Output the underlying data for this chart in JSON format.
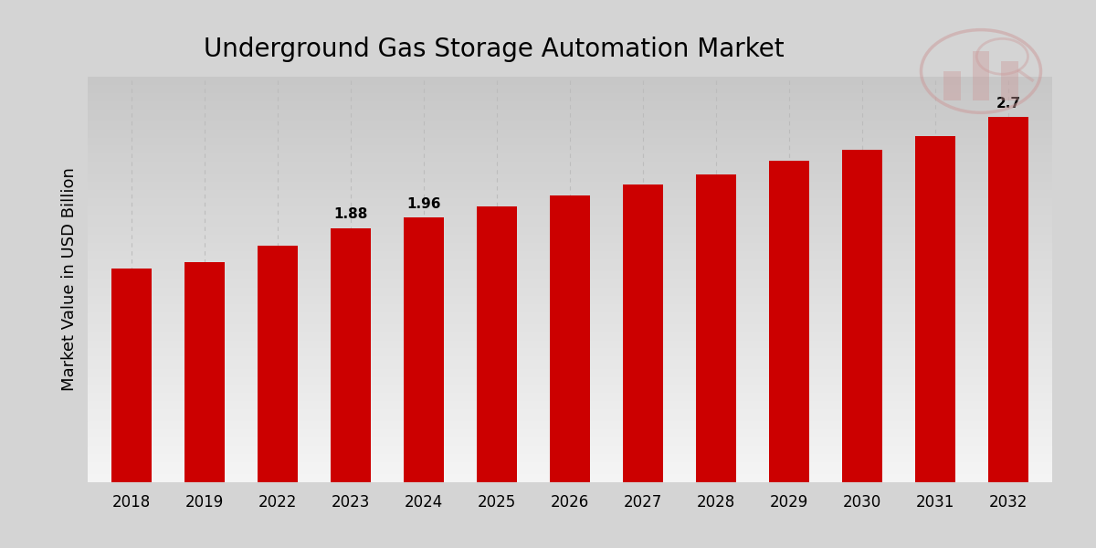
{
  "title": "Underground Gas Storage Automation Market",
  "ylabel": "Market Value in USD Billion",
  "categories": [
    "2018",
    "2019",
    "2022",
    "2023",
    "2024",
    "2025",
    "2026",
    "2027",
    "2028",
    "2029",
    "2030",
    "2031",
    "2032"
  ],
  "values": [
    1.58,
    1.63,
    1.75,
    1.88,
    1.96,
    2.04,
    2.12,
    2.2,
    2.28,
    2.38,
    2.46,
    2.56,
    2.7
  ],
  "bar_color": "#CC0000",
  "annotated_indices": [
    3,
    4,
    12
  ],
  "annotated_labels": [
    "1.88",
    "1.96",
    "2.7"
  ],
  "grid_color": "#bbbbbb",
  "ylim": [
    0,
    3.0
  ],
  "title_fontsize": 20,
  "label_fontsize": 13,
  "tick_fontsize": 12,
  "annot_fontsize": 11,
  "bar_width": 0.55,
  "bottom_stripe_color": "#CC0000",
  "bg_color_top": "#c8c8c8",
  "bg_color_bottom": "#f0f0f0"
}
